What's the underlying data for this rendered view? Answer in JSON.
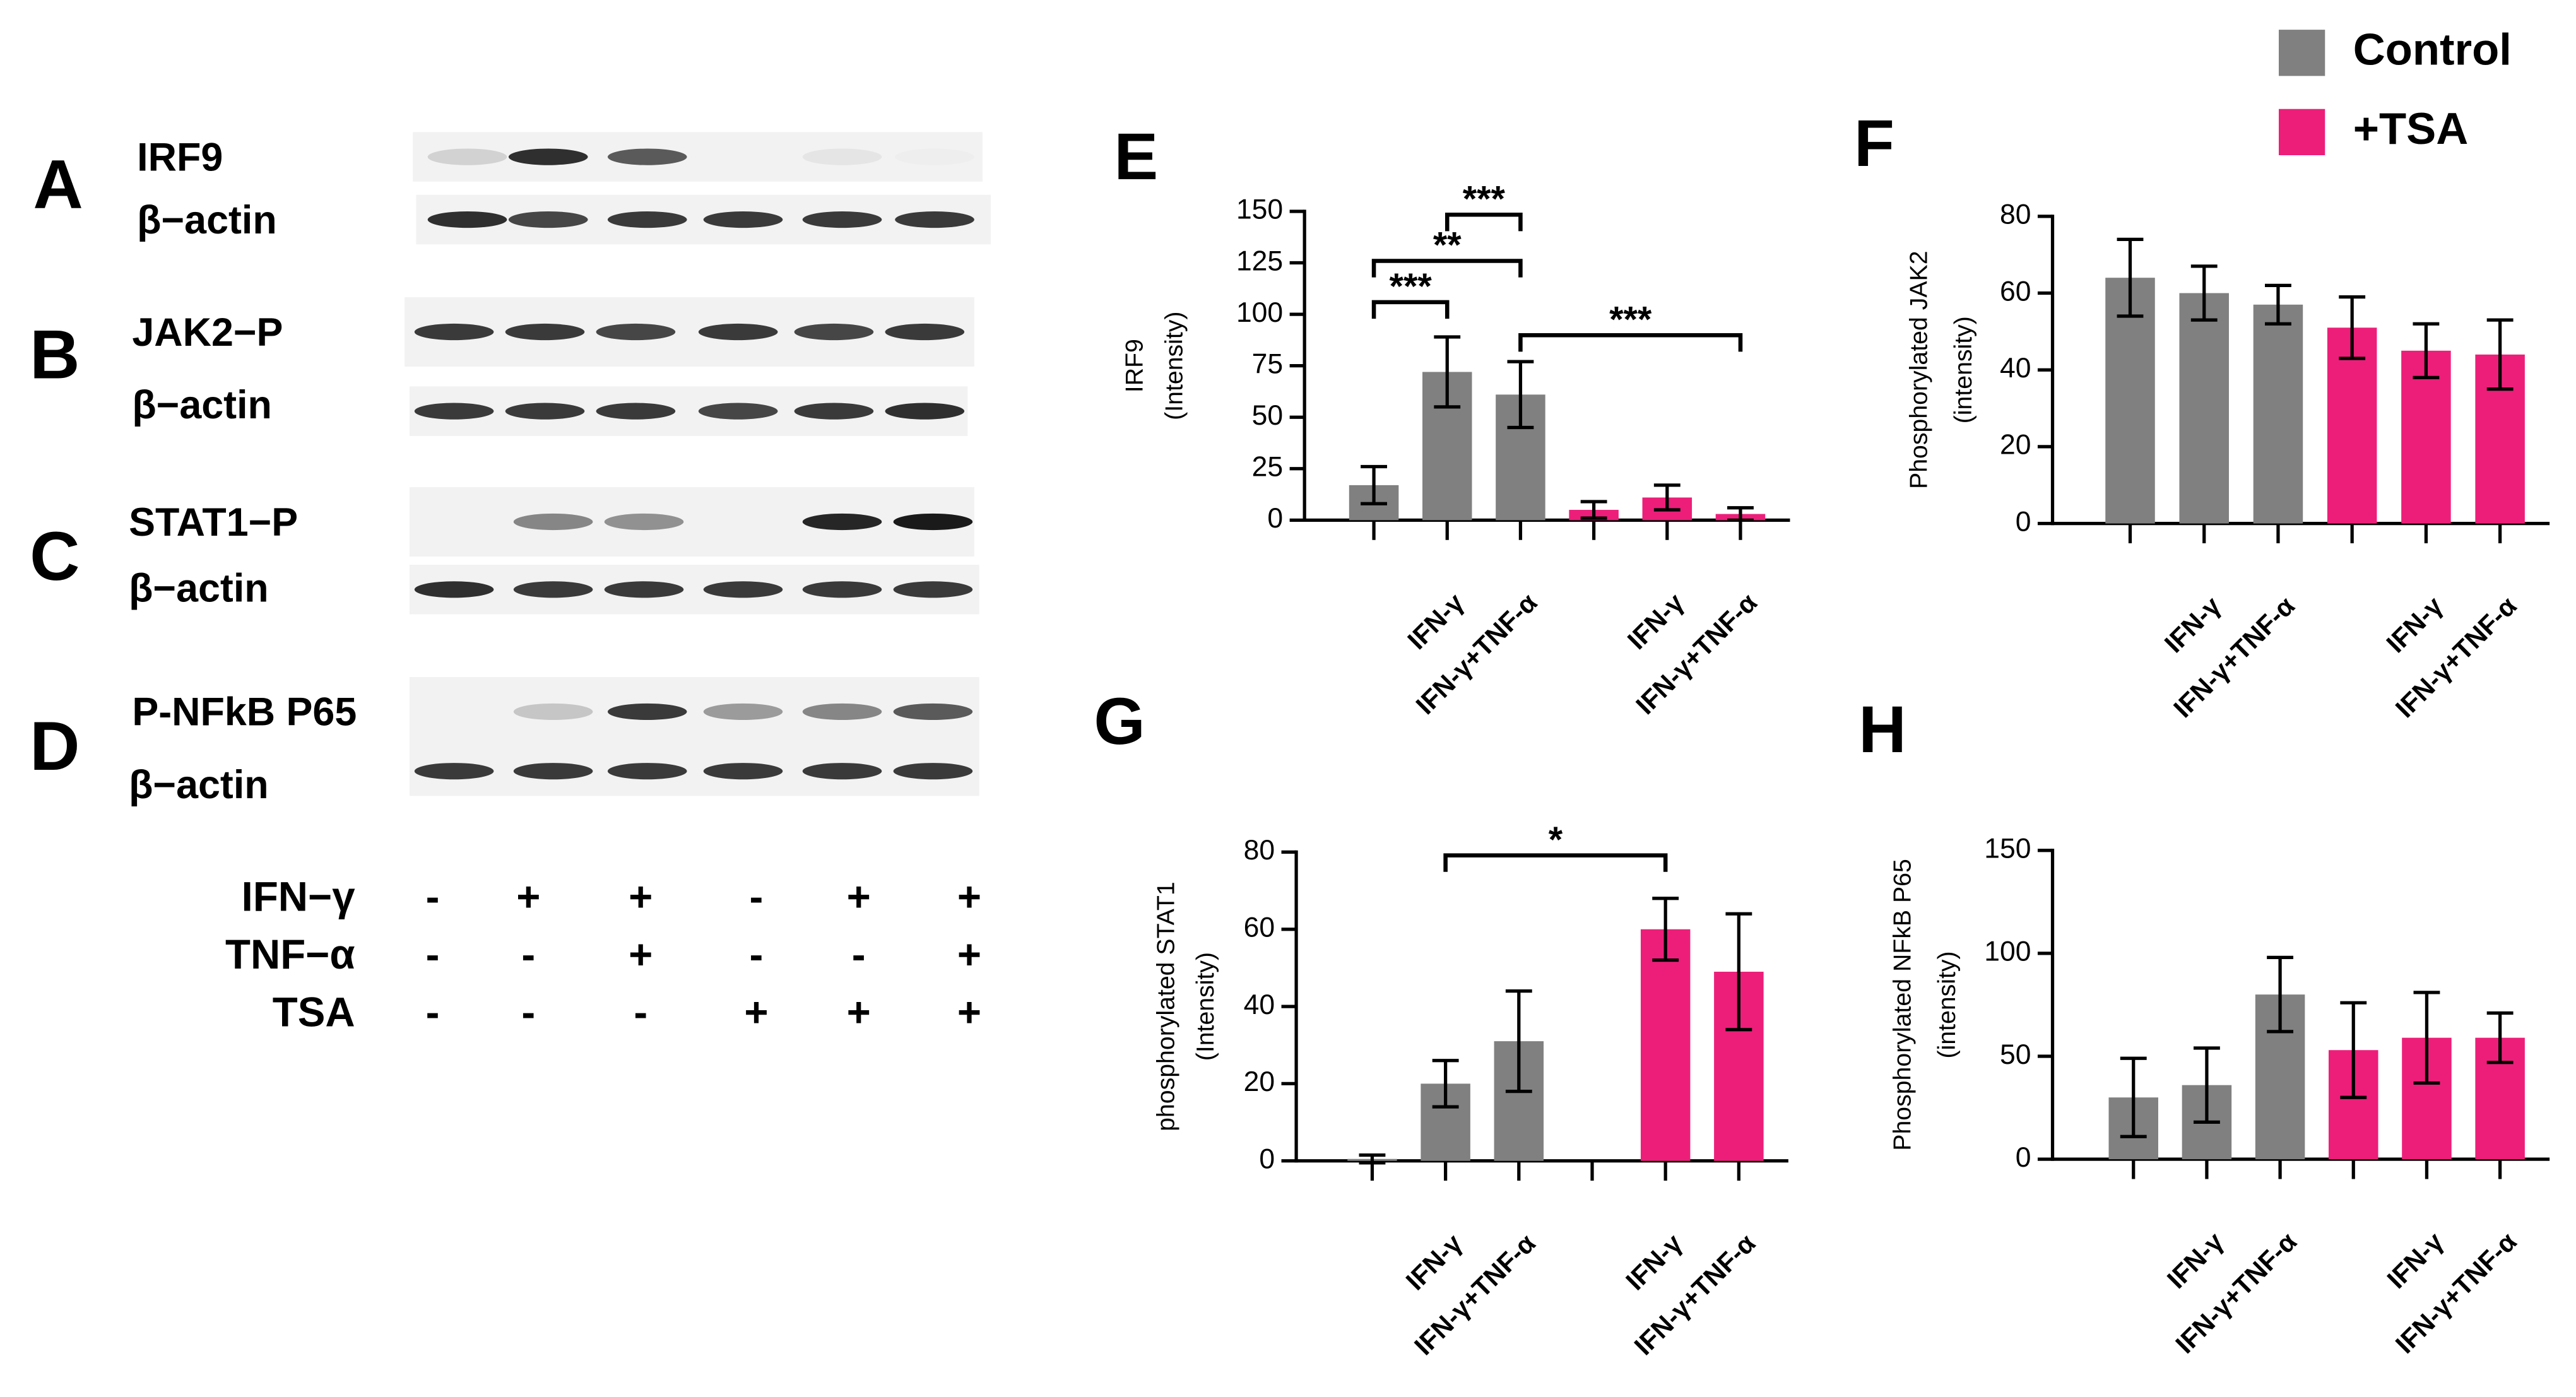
{
  "blots": {
    "panels": [
      {
        "letter": "A",
        "bands": [
          "IRF9",
          "β−actin"
        ]
      },
      {
        "letter": "B",
        "bands": [
          "JAK2−P",
          "β−actin"
        ]
      },
      {
        "letter": "C",
        "bands": [
          "STAT1−P",
          "β−actin"
        ]
      },
      {
        "letter": "D",
        "bands": [
          "P-NFkB P65",
          "β−actin"
        ]
      }
    ],
    "treatments": [
      {
        "name": "IFN−γ",
        "signs": [
          "-",
          "+",
          "+",
          "-",
          "+",
          "+"
        ]
      },
      {
        "name": "TNF−α",
        "signs": [
          "-",
          "-",
          "+",
          "-",
          "-",
          "+"
        ]
      },
      {
        "name": "TSA",
        "signs": [
          "-",
          "-",
          "-",
          "+",
          "+",
          "+"
        ]
      }
    ]
  },
  "chart_data": [
    {
      "type": "bar",
      "panel": "E",
      "ylabel": [
        "IRF9",
        "(Intensity)"
      ],
      "categories": [
        null,
        "IFN-γ",
        "IFN-γ+TNF-α",
        null,
        "IFN-γ",
        "IFN-γ+TNF-α"
      ],
      "series": [
        {
          "color": "#808080",
          "values": [
            17,
            72,
            61,
            null,
            null,
            null
          ],
          "errors": [
            9,
            17,
            16,
            null,
            null,
            null
          ]
        },
        {
          "color": "#ed1e79",
          "values": [
            null,
            null,
            null,
            5,
            11,
            3
          ],
          "errors": [
            null,
            null,
            null,
            4,
            6,
            3
          ]
        }
      ],
      "ylim": [
        0,
        150
      ],
      "yticks": [
        0,
        25,
        50,
        75,
        100,
        125,
        150
      ],
      "annotations": [
        "***",
        "**",
        "***",
        "***"
      ]
    },
    {
      "type": "bar",
      "panel": "F",
      "ylabel": [
        "Phosphorylated JAK2",
        "(intensity)"
      ],
      "categories": [
        null,
        "IFN-γ",
        "IFN-γ+TNF-α",
        null,
        "IFN-γ",
        "IFN-γ+TNF-α"
      ],
      "series": [
        {
          "name": "Control",
          "color": "#808080",
          "values": [
            64,
            60,
            57,
            null,
            null,
            null
          ],
          "errors": [
            10,
            7,
            5,
            null,
            null,
            null
          ]
        },
        {
          "name": "+TSA",
          "color": "#ed1e79",
          "values": [
            null,
            null,
            null,
            51,
            45,
            44
          ],
          "errors": [
            null,
            null,
            null,
            8,
            7,
            9
          ]
        }
      ],
      "ylim": [
        0,
        80
      ],
      "yticks": [
        0,
        20,
        40,
        60,
        80
      ]
    },
    {
      "type": "bar",
      "panel": "G",
      "ylabel": [
        "phosphorylated STAT1",
        "(Intensity)"
      ],
      "categories": [
        null,
        "IFN-γ",
        "IFN-γ+TNF-α",
        null,
        "IFN-γ",
        "IFN-γ+TNF-α"
      ],
      "series": [
        {
          "color": "#808080",
          "values": [
            0.5,
            20,
            31,
            null,
            null,
            null
          ],
          "errors": [
            1,
            6,
            13,
            null,
            null,
            null
          ]
        },
        {
          "color": "#ed1e79",
          "values": [
            null,
            null,
            null,
            0,
            60,
            49
          ],
          "errors": [
            null,
            null,
            null,
            null,
            8,
            15
          ]
        }
      ],
      "ylim": [
        0,
        80
      ],
      "yticks": [
        0,
        20,
        40,
        60,
        80
      ],
      "annotations": [
        "*"
      ]
    },
    {
      "type": "bar",
      "panel": "H",
      "ylabel": [
        "Phosphorylated NFkB P65",
        "(intensity)"
      ],
      "categories": [
        null,
        "IFN-γ",
        "IFN-γ+TNF-α",
        null,
        "IFN-γ",
        "IFN-γ+TNF-α"
      ],
      "series": [
        {
          "color": "#808080",
          "values": [
            30,
            36,
            80,
            null,
            null,
            null
          ],
          "errors": [
            19,
            18,
            18,
            null,
            null,
            null
          ]
        },
        {
          "color": "#ed1e79",
          "values": [
            null,
            null,
            null,
            53,
            59,
            59
          ],
          "errors": [
            null,
            null,
            null,
            23,
            22,
            12
          ]
        }
      ],
      "ylim": [
        0,
        150
      ],
      "yticks": [
        0,
        50,
        100,
        150
      ]
    }
  ]
}
